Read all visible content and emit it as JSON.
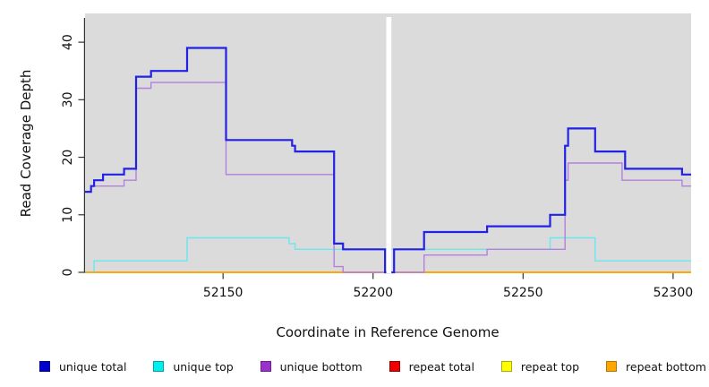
{
  "figure": {
    "background": "#ffffff",
    "panel_background": "#dbdbdb",
    "axis_color": "#333333",
    "text_color": "#111111"
  },
  "chart_data": {
    "type": "line",
    "subtype": "step",
    "title": "",
    "xlabel": "Coordinate in Reference Genome",
    "ylabel": "Read Coverage Depth",
    "xlim": [
      52104,
      52306
    ],
    "ylim": [
      0,
      45
    ],
    "x_ticks": [
      "52150",
      "52200",
      "52250",
      "52300"
    ],
    "x_tick_values": [
      52150,
      52200,
      52250,
      52300
    ],
    "y_ticks": [
      "0",
      "10",
      "20",
      "30",
      "40"
    ],
    "y_tick_values": [
      0,
      10,
      20,
      30,
      40
    ],
    "grid": false,
    "legend_position": "bottom-horizontal",
    "mask_band": {
      "x_start": 52204.4,
      "x_end": 52206.1,
      "color": "#ffffff"
    },
    "draw_order": [
      "repeat total",
      "repeat top",
      "unique top",
      "repeat bottom",
      "unique bottom",
      "unique total"
    ],
    "series": [
      {
        "name": "unique total",
        "color": "#2222e6",
        "width": 2.2,
        "steps": [
          [
            52104,
            14
          ],
          [
            52106,
            15
          ],
          [
            52107,
            16
          ],
          [
            52110,
            17
          ],
          [
            52117,
            18
          ],
          [
            52121,
            34
          ],
          [
            52126,
            35
          ],
          [
            52138,
            39
          ],
          [
            52151,
            23
          ],
          [
            52173,
            22
          ],
          [
            52174,
            21
          ],
          [
            52187,
            5
          ],
          [
            52190,
            4
          ],
          [
            52204,
            0
          ],
          [
            52207,
            4
          ],
          [
            52217,
            7
          ],
          [
            52238,
            8
          ],
          [
            52259,
            10
          ],
          [
            52264,
            22
          ],
          [
            52265,
            25
          ],
          [
            52274,
            21
          ],
          [
            52284,
            18
          ],
          [
            52303,
            17
          ],
          [
            52306,
            17
          ]
        ]
      },
      {
        "name": "unique top",
        "color": "#69e7f0",
        "width": 1.4,
        "steps": [
          [
            52104,
            0
          ],
          [
            52107,
            2
          ],
          [
            52138,
            6
          ],
          [
            52172,
            5
          ],
          [
            52174,
            4
          ],
          [
            52259,
            6
          ],
          [
            52274,
            2
          ],
          [
            52306,
            2
          ]
        ]
      },
      {
        "name": "unique bottom",
        "color": "#b47fde",
        "width": 1.4,
        "steps": [
          [
            52104,
            14
          ],
          [
            52106,
            15
          ],
          [
            52117,
            16
          ],
          [
            52121,
            32
          ],
          [
            52126,
            33
          ],
          [
            52151,
            17
          ],
          [
            52187,
            1
          ],
          [
            52190,
            0
          ],
          [
            52217,
            3
          ],
          [
            52238,
            4
          ],
          [
            52264,
            16
          ],
          [
            52265,
            19
          ],
          [
            52283,
            16
          ],
          [
            52303,
            15
          ],
          [
            52306,
            15
          ]
        ]
      },
      {
        "name": "repeat total",
        "color": "#ee0000",
        "width": 1.4,
        "steps": [
          [
            52104,
            0
          ],
          [
            52306,
            0
          ]
        ]
      },
      {
        "name": "repeat top",
        "color": "#ffff00",
        "width": 1.4,
        "steps": [
          [
            52104,
            0
          ],
          [
            52306,
            0
          ]
        ]
      },
      {
        "name": "repeat bottom",
        "color": "#ffa500",
        "width": 1.6,
        "steps": [
          [
            52104,
            0
          ],
          [
            52306,
            0
          ]
        ]
      }
    ],
    "legend": [
      {
        "label": "unique total",
        "color": "#0000cd",
        "border": "#00008b"
      },
      {
        "label": "unique top",
        "color": "#00eeee",
        "border": "#00a3ad"
      },
      {
        "label": "unique bottom",
        "color": "#9932cc",
        "border": "#701d99"
      },
      {
        "label": "repeat total",
        "color": "#ee0000",
        "border": "#990000"
      },
      {
        "label": "repeat top",
        "color": "#ffff00",
        "border": "#aaaa00"
      },
      {
        "label": "repeat bottom",
        "color": "#ffa500",
        "border": "#b77400"
      }
    ]
  }
}
